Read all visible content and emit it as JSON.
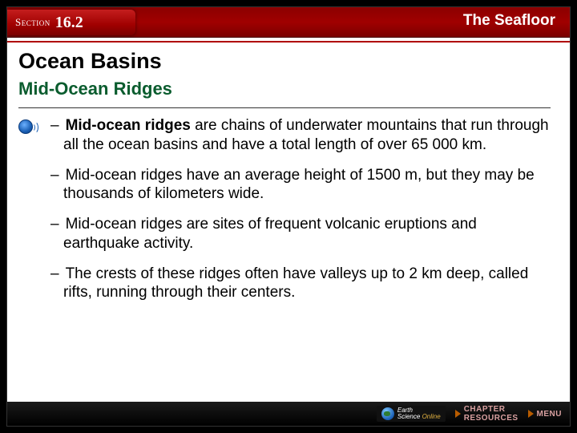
{
  "header": {
    "section_word": "Section",
    "section_number": "16.2",
    "chapter_title": "The Seafloor"
  },
  "content": {
    "title": "Ocean Basins",
    "subtitle": "Mid-Ocean Ridges",
    "bullets": [
      {
        "lead": "Mid-ocean ridges",
        "rest": " are chains of underwater mountains that run through all the ocean basins and have a total length of over 65 000 km.",
        "has_audio": true
      },
      {
        "lead": "",
        "rest": "Mid-ocean ridges have an average height of 1500 m, but they may be thousands of kilometers wide.",
        "has_audio": false
      },
      {
        "lead": "",
        "rest": "Mid-ocean ridges are sites of frequent volcanic eruptions and earthquake activity.",
        "has_audio": false
      },
      {
        "lead": "",
        "rest": "The crests of these ridges often have valleys up to 2 km deep, called rifts, running through their centers.",
        "has_audio": false
      }
    ]
  },
  "footer": {
    "earth_label_top": "Earth",
    "earth_label_bottom": "Science",
    "online": "Online",
    "chapter": "CHAPTER",
    "resources": "RESOURCES",
    "menu": "MENU"
  },
  "colors": {
    "header_bg": "#8b0000",
    "subtitle": "#0a5c2e",
    "footer_text": "#d9a0a0"
  }
}
